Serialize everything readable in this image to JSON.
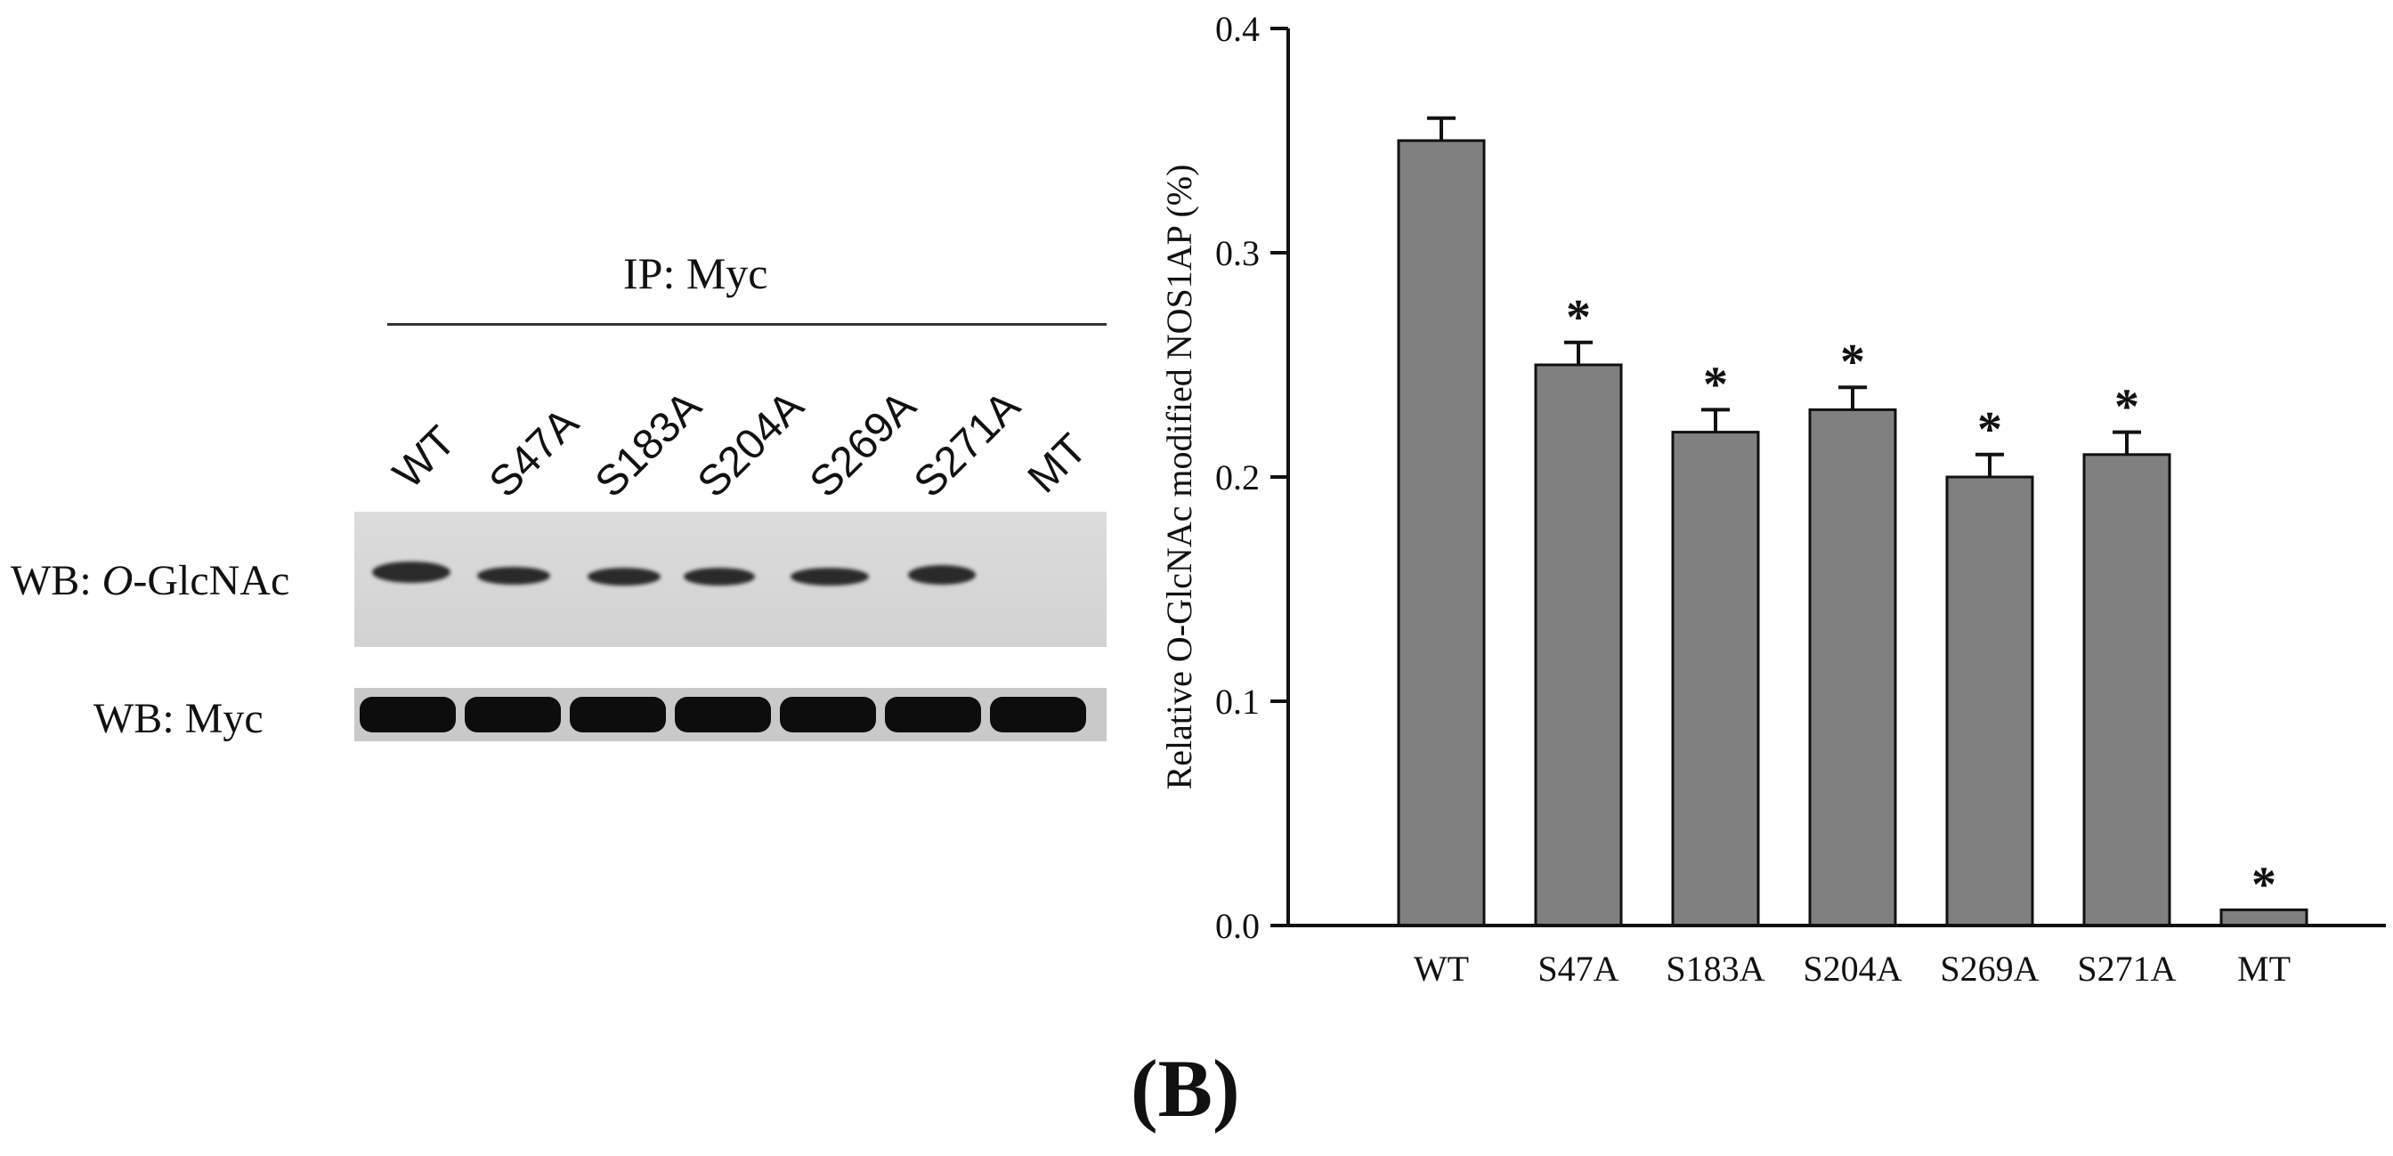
{
  "blot": {
    "ip_label": "IP: Myc",
    "lanes": [
      "WT",
      "S47A",
      "S183A",
      "S204A",
      "S269A",
      "S271A",
      "MT"
    ],
    "wb_oglcnac_prefix": "WB: ",
    "wb_oglcnac_italic": "O",
    "wb_oglcnac_suffix": "-GlcNAc",
    "wb_myc_label": "WB: Myc"
  },
  "chart_data": {
    "type": "bar",
    "categories": [
      "WT",
      "S47A",
      "S183A",
      "S204A",
      "S269A",
      "S271A",
      "MT"
    ],
    "values": [
      0.35,
      0.25,
      0.22,
      0.23,
      0.2,
      0.21,
      0.007
    ],
    "errors": [
      0.01,
      0.01,
      0.01,
      0.01,
      0.01,
      0.01,
      0.0
    ],
    "significance": [
      "",
      "*",
      "*",
      "*",
      "*",
      "*",
      "*"
    ],
    "title": "",
    "xlabel": "",
    "ylabel": "Relative O-GlcNAc modified NOS1AP (%)",
    "ylim": [
      0.0,
      0.4
    ],
    "yticks": [
      0.0,
      0.1,
      0.2,
      0.3,
      0.4
    ],
    "ytick_labels": [
      "0.0",
      "0.1",
      "0.2",
      "0.3",
      "0.4"
    ],
    "bar_color": "#808080"
  },
  "figure_label": "(B)"
}
